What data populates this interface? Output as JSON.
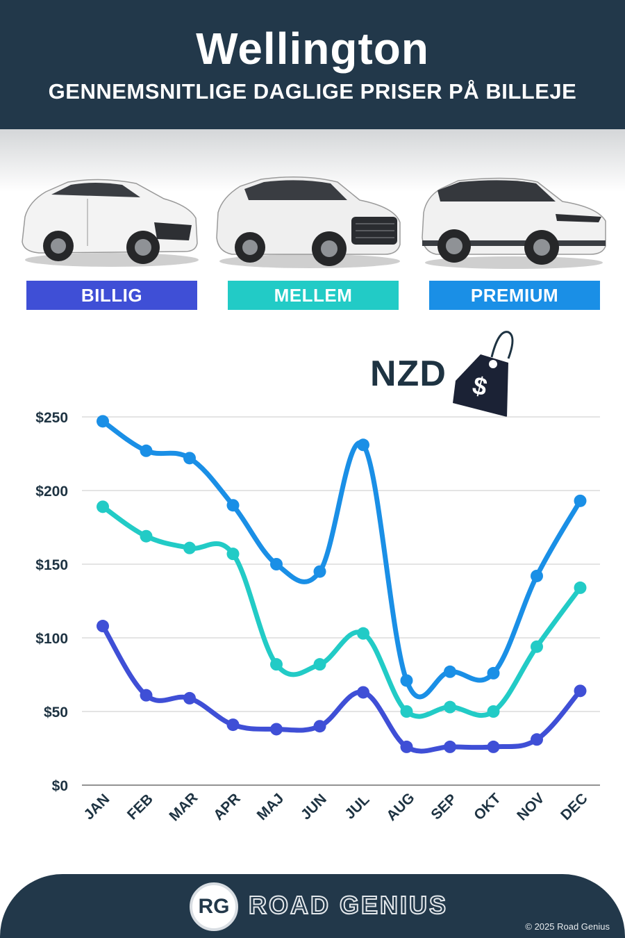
{
  "header": {
    "title": "Wellington",
    "subtitle": "GENNEMSNITLIGE DAGLIGE PRISER PÅ BILLEJE"
  },
  "categories": [
    {
      "label": "BILLIG",
      "color": "#3f4fd6"
    },
    {
      "label": "MELLEM",
      "color": "#22cbc6"
    },
    {
      "label": "PREMIUM",
      "color": "#1a8fe6"
    }
  ],
  "currency": {
    "label": "NZD",
    "tag_symbol": "$"
  },
  "chart_data": {
    "type": "line",
    "title": "",
    "xlabel": "",
    "ylabel": "",
    "categories": [
      "JAN",
      "FEB",
      "MAR",
      "APR",
      "MAJ",
      "JUN",
      "JUL",
      "AUG",
      "SEP",
      "OKT",
      "NOV",
      "DEC"
    ],
    "ylim": [
      0,
      250
    ],
    "yticks": [
      0,
      50,
      100,
      150,
      200,
      250
    ],
    "ytick_labels": [
      "$0",
      "$50",
      "$100",
      "$150",
      "$200",
      "$250"
    ],
    "grid": true,
    "series": [
      {
        "name": "PREMIUM",
        "color": "#1a8fe6",
        "values": [
          247,
          227,
          222,
          190,
          150,
          145,
          231,
          71,
          77,
          76,
          142,
          193
        ]
      },
      {
        "name": "MELLEM",
        "color": "#22cbc6",
        "values": [
          189,
          169,
          161,
          157,
          82,
          82,
          103,
          50,
          53,
          50,
          94,
          134
        ]
      },
      {
        "name": "BILLIG",
        "color": "#3f4fd6",
        "values": [
          108,
          61,
          59,
          41,
          38,
          40,
          63,
          26,
          26,
          26,
          31,
          64
        ]
      }
    ]
  },
  "footer": {
    "logo_initials": "RG",
    "brand": "ROAD GENIUS",
    "copyright": "© 2025 Road Genius"
  }
}
